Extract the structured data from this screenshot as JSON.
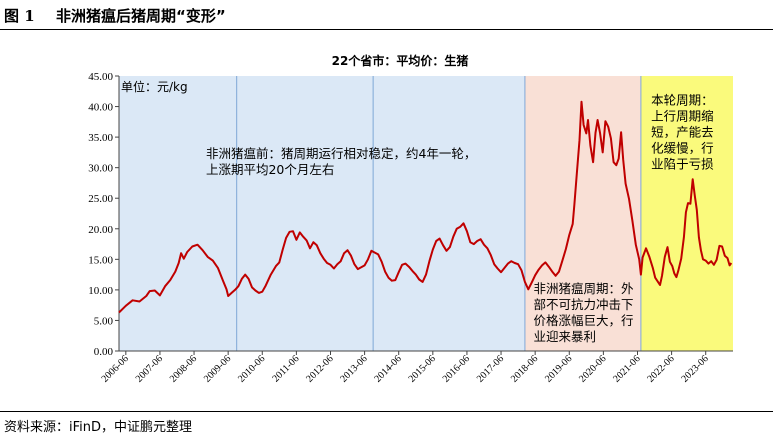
{
  "figure": {
    "number": "图 1",
    "title": "非洲猪瘟后猪周期“变形”",
    "source": "资料来源：iFinD，中证鹏元整理"
  },
  "chart_data": {
    "type": "line",
    "title": "22个省市：平均价：生猪",
    "unit_label": "单位：元/kg",
    "ylim": [
      0,
      45
    ],
    "yticks": [
      "0.00",
      "5.00",
      "10.00",
      "15.00",
      "20.00",
      "25.00",
      "30.00",
      "35.00",
      "40.00",
      "45.00"
    ],
    "xlim": [
      2006.3,
      2024.3
    ],
    "xticks": [
      {
        "x": 2006.5,
        "label": "2006-06"
      },
      {
        "x": 2007.5,
        "label": "2007-06"
      },
      {
        "x": 2008.5,
        "label": "2008-06"
      },
      {
        "x": 2009.5,
        "label": "2009-06"
      },
      {
        "x": 2010.5,
        "label": "2010-06"
      },
      {
        "x": 2011.5,
        "label": "2011-06"
      },
      {
        "x": 2012.5,
        "label": "2012-06"
      },
      {
        "x": 2013.5,
        "label": "2013-06"
      },
      {
        "x": 2014.5,
        "label": "2014-06"
      },
      {
        "x": 2015.5,
        "label": "2015-06"
      },
      {
        "x": 2016.5,
        "label": "2016-06"
      },
      {
        "x": 2017.5,
        "label": "2017-06"
      },
      {
        "x": 2018.5,
        "label": "2018-06"
      },
      {
        "x": 2019.5,
        "label": "2019-06"
      },
      {
        "x": 2020.5,
        "label": "2020-06"
      },
      {
        "x": 2021.5,
        "label": "2021-06"
      },
      {
        "x": 2022.5,
        "label": "2022-06"
      },
      {
        "x": 2023.5,
        "label": "2023-06"
      }
    ],
    "regions": [
      {
        "from": 2006.3,
        "to": 2018.2,
        "color": "#dbe8f6"
      },
      {
        "from": 2018.2,
        "to": 2021.6,
        "color": "#f9e0d6"
      },
      {
        "from": 2021.6,
        "to": 2024.3,
        "color": "#fafa7c"
      }
    ],
    "dividers": [
      2009.75,
      2013.75,
      2018.2,
      2021.6
    ],
    "annotations": [
      {
        "lines": [
          "非洲猪瘟前：猪周期运行相对稳定，约4年一轮，",
          "上涨期平均20个月左右"
        ],
        "x": 2008.85,
        "y": 31.6
      },
      {
        "lines": [
          "非洲猪瘟周期：外",
          "部不可抗力冲击下",
          "价格涨幅巨大，行",
          "业迎来暴利"
        ],
        "x": 2018.45,
        "y": 9.5
      },
      {
        "lines": [
          "本轮周期：",
          "上行周期缩",
          "短，产能去",
          "化缓慢，行",
          "业陷于亏损"
        ],
        "x": 2021.9,
        "y": 40.3
      }
    ],
    "line_color": "#c00000",
    "series": [
      {
        "points": [
          [
            2006.3,
            6.3
          ],
          [
            2006.5,
            7.4
          ],
          [
            2006.7,
            8.3
          ],
          [
            2006.9,
            8.1
          ],
          [
            2007.1,
            9.0
          ],
          [
            2007.2,
            9.8
          ],
          [
            2007.35,
            9.9
          ],
          [
            2007.5,
            9.1
          ],
          [
            2007.65,
            10.6
          ],
          [
            2007.8,
            11.6
          ],
          [
            2007.95,
            13.0
          ],
          [
            2008.05,
            14.4
          ],
          [
            2008.12,
            16.0
          ],
          [
            2008.2,
            15.1
          ],
          [
            2008.3,
            16.2
          ],
          [
            2008.45,
            17.1
          ],
          [
            2008.6,
            17.4
          ],
          [
            2008.75,
            16.5
          ],
          [
            2008.9,
            15.4
          ],
          [
            2009.05,
            14.8
          ],
          [
            2009.2,
            13.6
          ],
          [
            2009.35,
            11.5
          ],
          [
            2009.45,
            10.1
          ],
          [
            2009.5,
            9.0
          ],
          [
            2009.6,
            9.5
          ],
          [
            2009.7,
            10.0
          ],
          [
            2009.8,
            10.6
          ],
          [
            2009.9,
            11.8
          ],
          [
            2010.0,
            12.5
          ],
          [
            2010.1,
            11.8
          ],
          [
            2010.2,
            10.4
          ],
          [
            2010.3,
            9.9
          ],
          [
            2010.4,
            9.5
          ],
          [
            2010.5,
            9.7
          ],
          [
            2010.6,
            10.7
          ],
          [
            2010.75,
            12.5
          ],
          [
            2010.9,
            13.9
          ],
          [
            2011.0,
            14.5
          ],
          [
            2011.1,
            16.6
          ],
          [
            2011.2,
            18.5
          ],
          [
            2011.3,
            19.5
          ],
          [
            2011.4,
            19.6
          ],
          [
            2011.5,
            18.2
          ],
          [
            2011.6,
            19.4
          ],
          [
            2011.7,
            18.7
          ],
          [
            2011.8,
            18.1
          ],
          [
            2011.9,
            16.8
          ],
          [
            2012.0,
            17.8
          ],
          [
            2012.1,
            17.3
          ],
          [
            2012.2,
            16.0
          ],
          [
            2012.3,
            15.1
          ],
          [
            2012.4,
            14.4
          ],
          [
            2012.5,
            14.1
          ],
          [
            2012.6,
            13.5
          ],
          [
            2012.7,
            14.2
          ],
          [
            2012.8,
            14.7
          ],
          [
            2012.9,
            16.0
          ],
          [
            2013.0,
            16.5
          ],
          [
            2013.1,
            15.6
          ],
          [
            2013.2,
            14.2
          ],
          [
            2013.3,
            13.4
          ],
          [
            2013.4,
            13.7
          ],
          [
            2013.5,
            14.0
          ],
          [
            2013.6,
            15.0
          ],
          [
            2013.7,
            16.4
          ],
          [
            2013.8,
            16.1
          ],
          [
            2013.9,
            15.8
          ],
          [
            2014.0,
            14.6
          ],
          [
            2014.1,
            13.0
          ],
          [
            2014.2,
            12.0
          ],
          [
            2014.3,
            11.5
          ],
          [
            2014.4,
            11.6
          ],
          [
            2014.5,
            12.9
          ],
          [
            2014.6,
            14.1
          ],
          [
            2014.7,
            14.3
          ],
          [
            2014.8,
            13.8
          ],
          [
            2014.9,
            13.1
          ],
          [
            2015.0,
            12.5
          ],
          [
            2015.1,
            11.7
          ],
          [
            2015.2,
            11.3
          ],
          [
            2015.3,
            12.5
          ],
          [
            2015.4,
            14.7
          ],
          [
            2015.5,
            16.6
          ],
          [
            2015.6,
            18.0
          ],
          [
            2015.7,
            18.4
          ],
          [
            2015.8,
            17.3
          ],
          [
            2015.9,
            16.4
          ],
          [
            2016.0,
            17.0
          ],
          [
            2016.1,
            18.7
          ],
          [
            2016.2,
            20.0
          ],
          [
            2016.3,
            20.3
          ],
          [
            2016.4,
            20.9
          ],
          [
            2016.5,
            19.6
          ],
          [
            2016.6,
            17.8
          ],
          [
            2016.7,
            17.5
          ],
          [
            2016.8,
            18.0
          ],
          [
            2016.9,
            18.3
          ],
          [
            2017.0,
            17.4
          ],
          [
            2017.1,
            16.8
          ],
          [
            2017.2,
            15.7
          ],
          [
            2017.3,
            14.2
          ],
          [
            2017.4,
            13.5
          ],
          [
            2017.5,
            12.9
          ],
          [
            2017.6,
            13.6
          ],
          [
            2017.7,
            14.3
          ],
          [
            2017.8,
            14.7
          ],
          [
            2017.9,
            14.4
          ],
          [
            2018.0,
            14.2
          ],
          [
            2018.1,
            13.2
          ],
          [
            2018.2,
            11.3
          ],
          [
            2018.3,
            10.1
          ],
          [
            2018.4,
            11.2
          ],
          [
            2018.5,
            12.4
          ],
          [
            2018.6,
            13.3
          ],
          [
            2018.7,
            14.0
          ],
          [
            2018.8,
            14.5
          ],
          [
            2018.9,
            13.8
          ],
          [
            2019.0,
            13.0
          ],
          [
            2019.1,
            12.3
          ],
          [
            2019.2,
            13.0
          ],
          [
            2019.3,
            14.8
          ],
          [
            2019.4,
            16.7
          ],
          [
            2019.5,
            19.0
          ],
          [
            2019.6,
            20.8
          ],
          [
            2019.65,
            24.0
          ],
          [
            2019.72,
            29.0
          ],
          [
            2019.8,
            34.5
          ],
          [
            2019.86,
            40.8
          ],
          [
            2019.92,
            37.0
          ],
          [
            2020.0,
            35.6
          ],
          [
            2020.05,
            37.8
          ],
          [
            2020.12,
            33.6
          ],
          [
            2020.2,
            30.9
          ],
          [
            2020.27,
            35.7
          ],
          [
            2020.33,
            37.8
          ],
          [
            2020.4,
            35.7
          ],
          [
            2020.48,
            32.5
          ],
          [
            2020.56,
            37.6
          ],
          [
            2020.64,
            36.7
          ],
          [
            2020.72,
            34.8
          ],
          [
            2020.8,
            30.9
          ],
          [
            2020.88,
            30.4
          ],
          [
            2020.95,
            31.5
          ],
          [
            2021.02,
            35.8
          ],
          [
            2021.08,
            31.3
          ],
          [
            2021.15,
            27.4
          ],
          [
            2021.25,
            24.9
          ],
          [
            2021.35,
            21.3
          ],
          [
            2021.45,
            17.4
          ],
          [
            2021.55,
            15.0
          ],
          [
            2021.6,
            12.5
          ],
          [
            2021.65,
            15.3
          ],
          [
            2021.75,
            16.8
          ],
          [
            2021.85,
            15.4
          ],
          [
            2021.95,
            13.6
          ],
          [
            2022.02,
            12.0
          ],
          [
            2022.1,
            11.3
          ],
          [
            2022.16,
            10.8
          ],
          [
            2022.22,
            12.3
          ],
          [
            2022.3,
            15.4
          ],
          [
            2022.38,
            17.0
          ],
          [
            2022.45,
            14.6
          ],
          [
            2022.52,
            13.9
          ],
          [
            2022.58,
            12.7
          ],
          [
            2022.64,
            12.1
          ],
          [
            2022.7,
            13.2
          ],
          [
            2022.78,
            15.1
          ],
          [
            2022.86,
            18.6
          ],
          [
            2022.92,
            22.7
          ],
          [
            2022.98,
            24.2
          ],
          [
            2023.05,
            24.1
          ],
          [
            2023.12,
            28.1
          ],
          [
            2023.18,
            25.4
          ],
          [
            2023.24,
            23.1
          ],
          [
            2023.3,
            18.6
          ],
          [
            2023.36,
            16.5
          ],
          [
            2023.42,
            15.0
          ],
          [
            2023.5,
            14.8
          ],
          [
            2023.58,
            14.3
          ],
          [
            2023.66,
            14.7
          ],
          [
            2023.74,
            14.1
          ],
          [
            2023.82,
            14.9
          ],
          [
            2023.9,
            17.2
          ],
          [
            2023.98,
            17.1
          ],
          [
            2024.06,
            15.6
          ],
          [
            2024.14,
            15.2
          ],
          [
            2024.2,
            14.0
          ],
          [
            2024.25,
            14.4
          ]
        ]
      }
    ]
  }
}
